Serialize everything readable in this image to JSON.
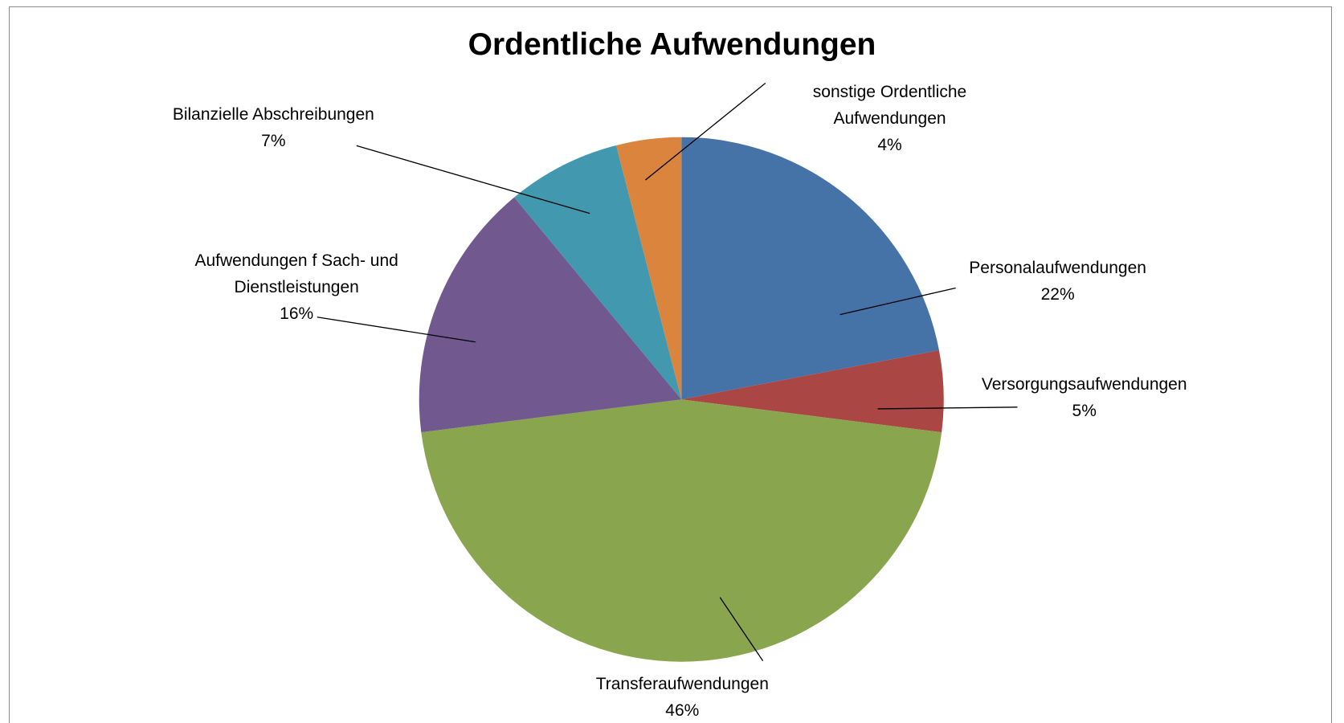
{
  "chart_data": {
    "type": "pie",
    "title": "Ordentliche Aufwendungen",
    "categories": [
      "Personalaufwendungen",
      "Versorgungsaufwendungen",
      "Transferaufwendungen",
      "Aufwendungen f Sach- und Dienstleistungen",
      "Bilanzielle Abschreibungen",
      "sonstige Ordentliche Aufwendungen"
    ],
    "values": [
      22,
      5,
      46,
      16,
      7,
      4
    ],
    "value_labels": [
      "22%",
      "5%",
      "46%",
      "16%",
      "7%",
      "4%"
    ],
    "colors": [
      "#4572a7",
      "#aa4643",
      "#89a54e",
      "#71588f",
      "#4198af",
      "#db843d"
    ]
  }
}
